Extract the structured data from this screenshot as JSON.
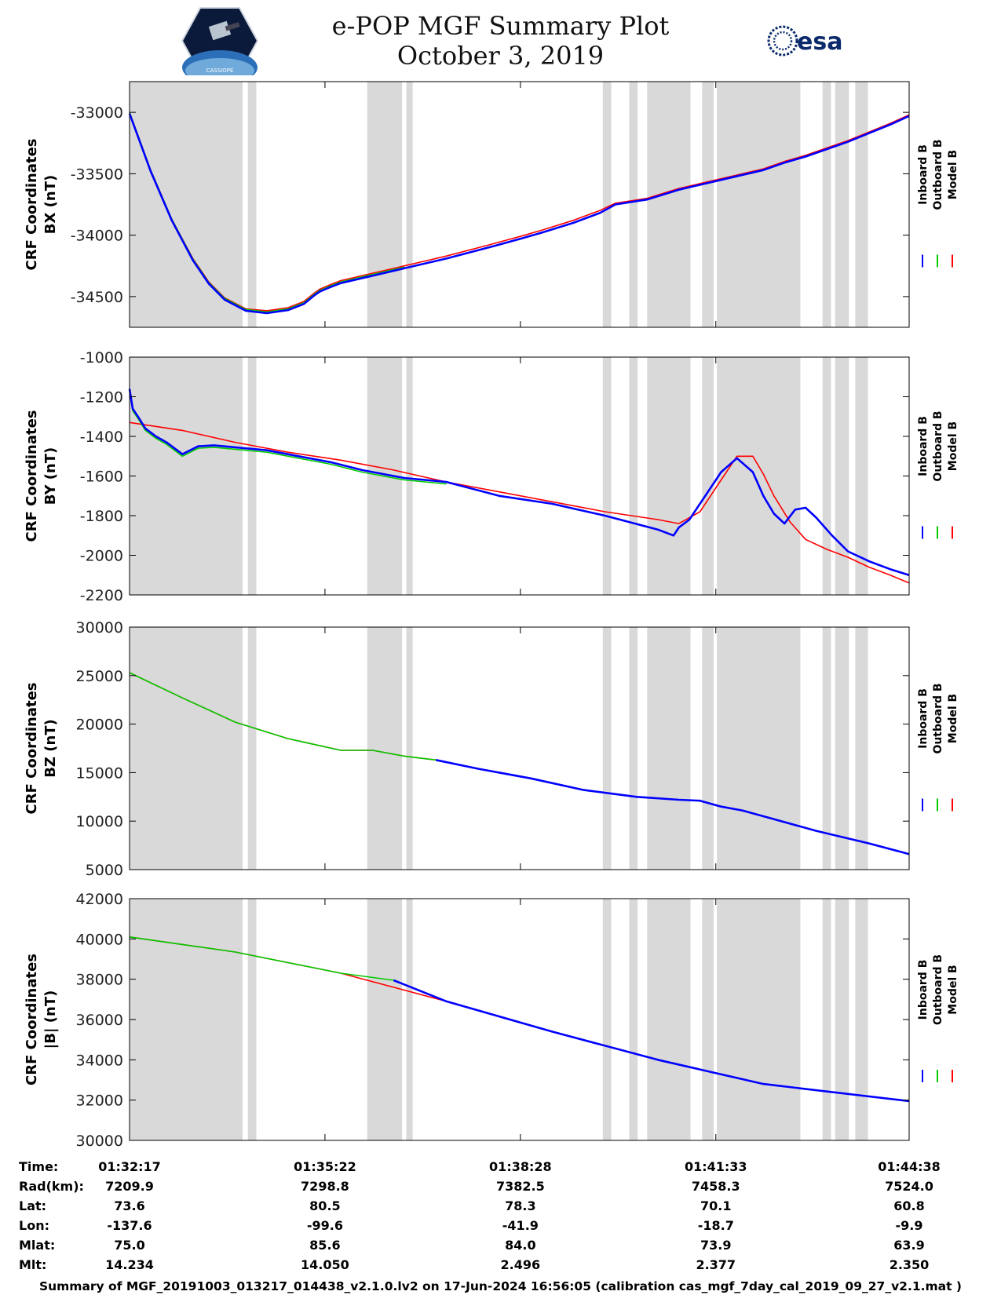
{
  "header": {
    "title_line1": "e-POP MGF Summary Plot",
    "title_line2": "October 3, 2019",
    "logo_left": "CASSIOPE",
    "logo_right": "esa"
  },
  "colors": {
    "inboard": "#0000ff",
    "outboard": "#00cc00",
    "model": "#ff0000",
    "gap": "#d9d9d9"
  },
  "chart_data": [
    {
      "type": "line",
      "id": "bx",
      "ylabel_line1": "CRF Coordinates",
      "ylabel_line2": "BX (nT)",
      "ylim": [
        -34750,
        -32750
      ],
      "yticks": [
        -33000,
        -33500,
        -34000,
        -34500
      ],
      "ytick_labels": [
        "-33000",
        "-33500",
        "-34000",
        "-34500"
      ],
      "legend": [
        "Inboard B",
        "Outboard B",
        "Model B"
      ],
      "series": [
        {
          "name": "Model B",
          "x": [
            0,
            20,
            40,
            60,
            75,
            90,
            110,
            130,
            150,
            165,
            175,
            180,
            188,
            200,
            230,
            260,
            280,
            300,
            340,
            370,
            390,
            420,
            445,
            460,
            490,
            520,
            560,
            600,
            620,
            640,
            660,
            680,
            700,
            720,
            738
          ],
          "values": [
            -33000,
            -33470,
            -33870,
            -34190,
            -34380,
            -34510,
            -34600,
            -34615,
            -34590,
            -34540,
            -34470,
            -34440,
            -34410,
            -34370,
            -34310,
            -34250,
            -34210,
            -34170,
            -34080,
            -34010,
            -33960,
            -33880,
            -33800,
            -33740,
            -33700,
            -33620,
            -33540,
            -33460,
            -33400,
            -33350,
            -33290,
            -33230,
            -33160,
            -33090,
            -33020
          ]
        },
        {
          "name": "Outboard B",
          "x": [
            0,
            20,
            40,
            60,
            75,
            90,
            110,
            130,
            150,
            165,
            175,
            180,
            188,
            200,
            230,
            260
          ],
          "values": [
            -33000,
            -33470,
            -33870,
            -34195,
            -34385,
            -34515,
            -34605,
            -34625,
            -34600,
            -34550,
            -34480,
            -34450,
            -34420,
            -34380,
            -34320,
            -34260
          ]
        },
        {
          "name": "Inboard B",
          "x": [
            0,
            20,
            40,
            60,
            75,
            90,
            110,
            130,
            150,
            165,
            175,
            180,
            188,
            200,
            230,
            260,
            280,
            300,
            340,
            370,
            390,
            420,
            445,
            460,
            490,
            520,
            560,
            600,
            620,
            640,
            660,
            680,
            700,
            720,
            738
          ],
          "values": [
            -33010,
            -33480,
            -33880,
            -34205,
            -34395,
            -34525,
            -34615,
            -34635,
            -34610,
            -34560,
            -34490,
            -34460,
            -34430,
            -34390,
            -34330,
            -34270,
            -34230,
            -34190,
            -34100,
            -34030,
            -33980,
            -33900,
            -33820,
            -33750,
            -33710,
            -33630,
            -33550,
            -33470,
            -33410,
            -33360,
            -33300,
            -33240,
            -33170,
            -33100,
            -33030
          ]
        }
      ]
    },
    {
      "type": "line",
      "id": "by",
      "ylabel_line1": "CRF Coordinates",
      "ylabel_line2": "BY (nT)",
      "ylim": [
        -2200,
        -1000
      ],
      "yticks": [
        -1000,
        -1200,
        -1400,
        -1600,
        -1800,
        -2000,
        -2200
      ],
      "ytick_labels": [
        "-1000",
        "-1200",
        "-1400",
        "-1600",
        "-1800",
        "-2000",
        "-2200"
      ],
      "legend": [
        "Inboard B",
        "Outboard B",
        "Model B"
      ],
      "series": [
        {
          "name": "Model B",
          "x": [
            0,
            50,
            100,
            150,
            200,
            250,
            300,
            350,
            400,
            450,
            500,
            520,
            540,
            560,
            575,
            590,
            600,
            610,
            625,
            640,
            660,
            680,
            700,
            720,
            738
          ],
          "values": [
            -1330,
            -1370,
            -1430,
            -1480,
            -1520,
            -1570,
            -1630,
            -1680,
            -1730,
            -1780,
            -1820,
            -1840,
            -1780,
            -1620,
            -1500,
            -1500,
            -1590,
            -1700,
            -1830,
            -1920,
            -1970,
            -2010,
            -2060,
            -2100,
            -2140
          ]
        },
        {
          "name": "Outboard B",
          "x": [
            0,
            3,
            8,
            15,
            25,
            35,
            50,
            65,
            80,
            100,
            130,
            160,
            190,
            220,
            260,
            300
          ],
          "values": [
            -1170,
            -1270,
            -1310,
            -1370,
            -1410,
            -1440,
            -1500,
            -1460,
            -1455,
            -1465,
            -1480,
            -1510,
            -1540,
            -1580,
            -1620,
            -1640
          ]
        },
        {
          "name": "Inboard B",
          "x": [
            0,
            3,
            8,
            15,
            25,
            35,
            50,
            65,
            80,
            100,
            130,
            160,
            190,
            220,
            260,
            300,
            350,
            400,
            450,
            500,
            515,
            520,
            530,
            545,
            560,
            575,
            590,
            600,
            610,
            620,
            630,
            640,
            650,
            665,
            680,
            700,
            720,
            738
          ],
          "values": [
            -1160,
            -1260,
            -1300,
            -1360,
            -1400,
            -1430,
            -1490,
            -1450,
            -1445,
            -1455,
            -1470,
            -1500,
            -1530,
            -1570,
            -1610,
            -1630,
            -1700,
            -1740,
            -1800,
            -1870,
            -1900,
            -1860,
            -1820,
            -1700,
            -1580,
            -1510,
            -1580,
            -1700,
            -1790,
            -1840,
            -1770,
            -1760,
            -1810,
            -1900,
            -1980,
            -2030,
            -2070,
            -2100
          ]
        }
      ]
    },
    {
      "type": "line",
      "id": "bz",
      "ylabel_line1": "CRF Coordinates",
      "ylabel_line2": "BZ (nT)",
      "ylim": [
        5000,
        30000
      ],
      "yticks": [
        30000,
        25000,
        20000,
        15000,
        10000,
        5000
      ],
      "ytick_labels": [
        "30000",
        "25000",
        "20000",
        "15000",
        "10000",
        "5000"
      ],
      "legend": [
        "Inboard B",
        "Outboard B",
        "Model B"
      ],
      "series": [
        {
          "name": "Model B",
          "x": [
            0,
            50,
            100,
            150,
            200,
            230,
            260,
            290,
            330,
            380,
            430,
            480,
            520,
            540,
            560,
            580,
            600,
            650,
            700,
            738
          ],
          "values": [
            25300,
            22700,
            20200,
            18500,
            17300,
            17300,
            16700,
            16300,
            15400,
            14400,
            13200,
            12500,
            12200,
            12100,
            11500,
            11100,
            10500,
            9000,
            7700,
            6600
          ]
        },
        {
          "name": "Outboard B",
          "x": [
            0,
            50,
            100,
            150,
            200,
            230,
            260,
            290
          ],
          "values": [
            25300,
            22700,
            20200,
            18500,
            17300,
            17300,
            16700,
            16300
          ]
        },
        {
          "name": "Inboard B",
          "x": [
            290,
            330,
            380,
            430,
            480,
            520,
            540,
            560,
            580,
            600,
            650,
            700,
            738
          ],
          "values": [
            16300,
            15400,
            14400,
            13200,
            12500,
            12200,
            12100,
            11500,
            11100,
            10500,
            9000,
            7700,
            6600
          ]
        }
      ]
    },
    {
      "type": "line",
      "id": "bmag",
      "ylabel_line1": "CRF Coordinates",
      "ylabel_line2": "|B| (nT)",
      "ylim": [
        30000,
        42000
      ],
      "yticks": [
        42000,
        40000,
        38000,
        36000,
        34000,
        32000,
        30000
      ],
      "ytick_labels": [
        "42000",
        "40000",
        "38000",
        "36000",
        "34000",
        "32000",
        "30000"
      ],
      "legend": [
        "Inboard B",
        "Outboard B",
        "Model B"
      ],
      "series": [
        {
          "name": "Model B",
          "x": [
            0,
            100,
            200,
            300,
            400,
            500,
            600,
            738
          ],
          "values": [
            40100,
            39350,
            38300,
            36900,
            35400,
            34000,
            32800,
            31950
          ]
        },
        {
          "name": "Outboard B",
          "x": [
            0,
            100,
            200,
            250
          ],
          "values": [
            40100,
            39350,
            38300,
            37950
          ]
        },
        {
          "name": "Inboard B",
          "x": [
            250,
            300,
            400,
            500,
            600,
            738
          ],
          "values": [
            37950,
            36900,
            35400,
            34000,
            32800,
            31950
          ]
        }
      ]
    }
  ],
  "gap_intervals": [
    [
      0,
      107
    ],
    [
      112,
      120
    ],
    [
      225,
      258
    ],
    [
      262,
      268
    ],
    [
      448,
      456
    ],
    [
      473,
      481
    ],
    [
      490,
      531
    ],
    [
      542,
      553
    ],
    [
      556,
      635
    ],
    [
      656,
      664
    ],
    [
      668,
      681
    ],
    [
      687,
      699
    ]
  ],
  "x_axis": {
    "range": [
      0,
      738
    ],
    "tick_positions": [
      185,
      370,
      555
    ],
    "ephemeris": {
      "row_labels": [
        "Time:",
        "Rad(km):",
        "Lat:",
        "Lon:",
        "Mlat:",
        "Mlt:"
      ],
      "columns": [
        [
          "01:32:17",
          "7209.9",
          "73.6",
          "-137.6",
          "75.0",
          "14.234"
        ],
        [
          "01:35:22",
          "7298.8",
          "80.5",
          "-99.6",
          "85.6",
          "14.050"
        ],
        [
          "01:38:28",
          "7382.5",
          "78.3",
          "-41.9",
          "84.0",
          "2.496"
        ],
        [
          "01:41:33",
          "7458.3",
          "70.1",
          "-18.7",
          "73.9",
          "2.377"
        ],
        [
          "01:44:38",
          "7524.0",
          "60.8",
          "-9.9",
          "63.9",
          "2.350"
        ]
      ]
    }
  },
  "footer": "Summary of MGF_20191003_013217_014438_v2.1.0.lv2 on 17-Jun-2024 16:56:05 (calibration cas_mgf_7day_cal_2019_09_27_v2.1.mat )"
}
